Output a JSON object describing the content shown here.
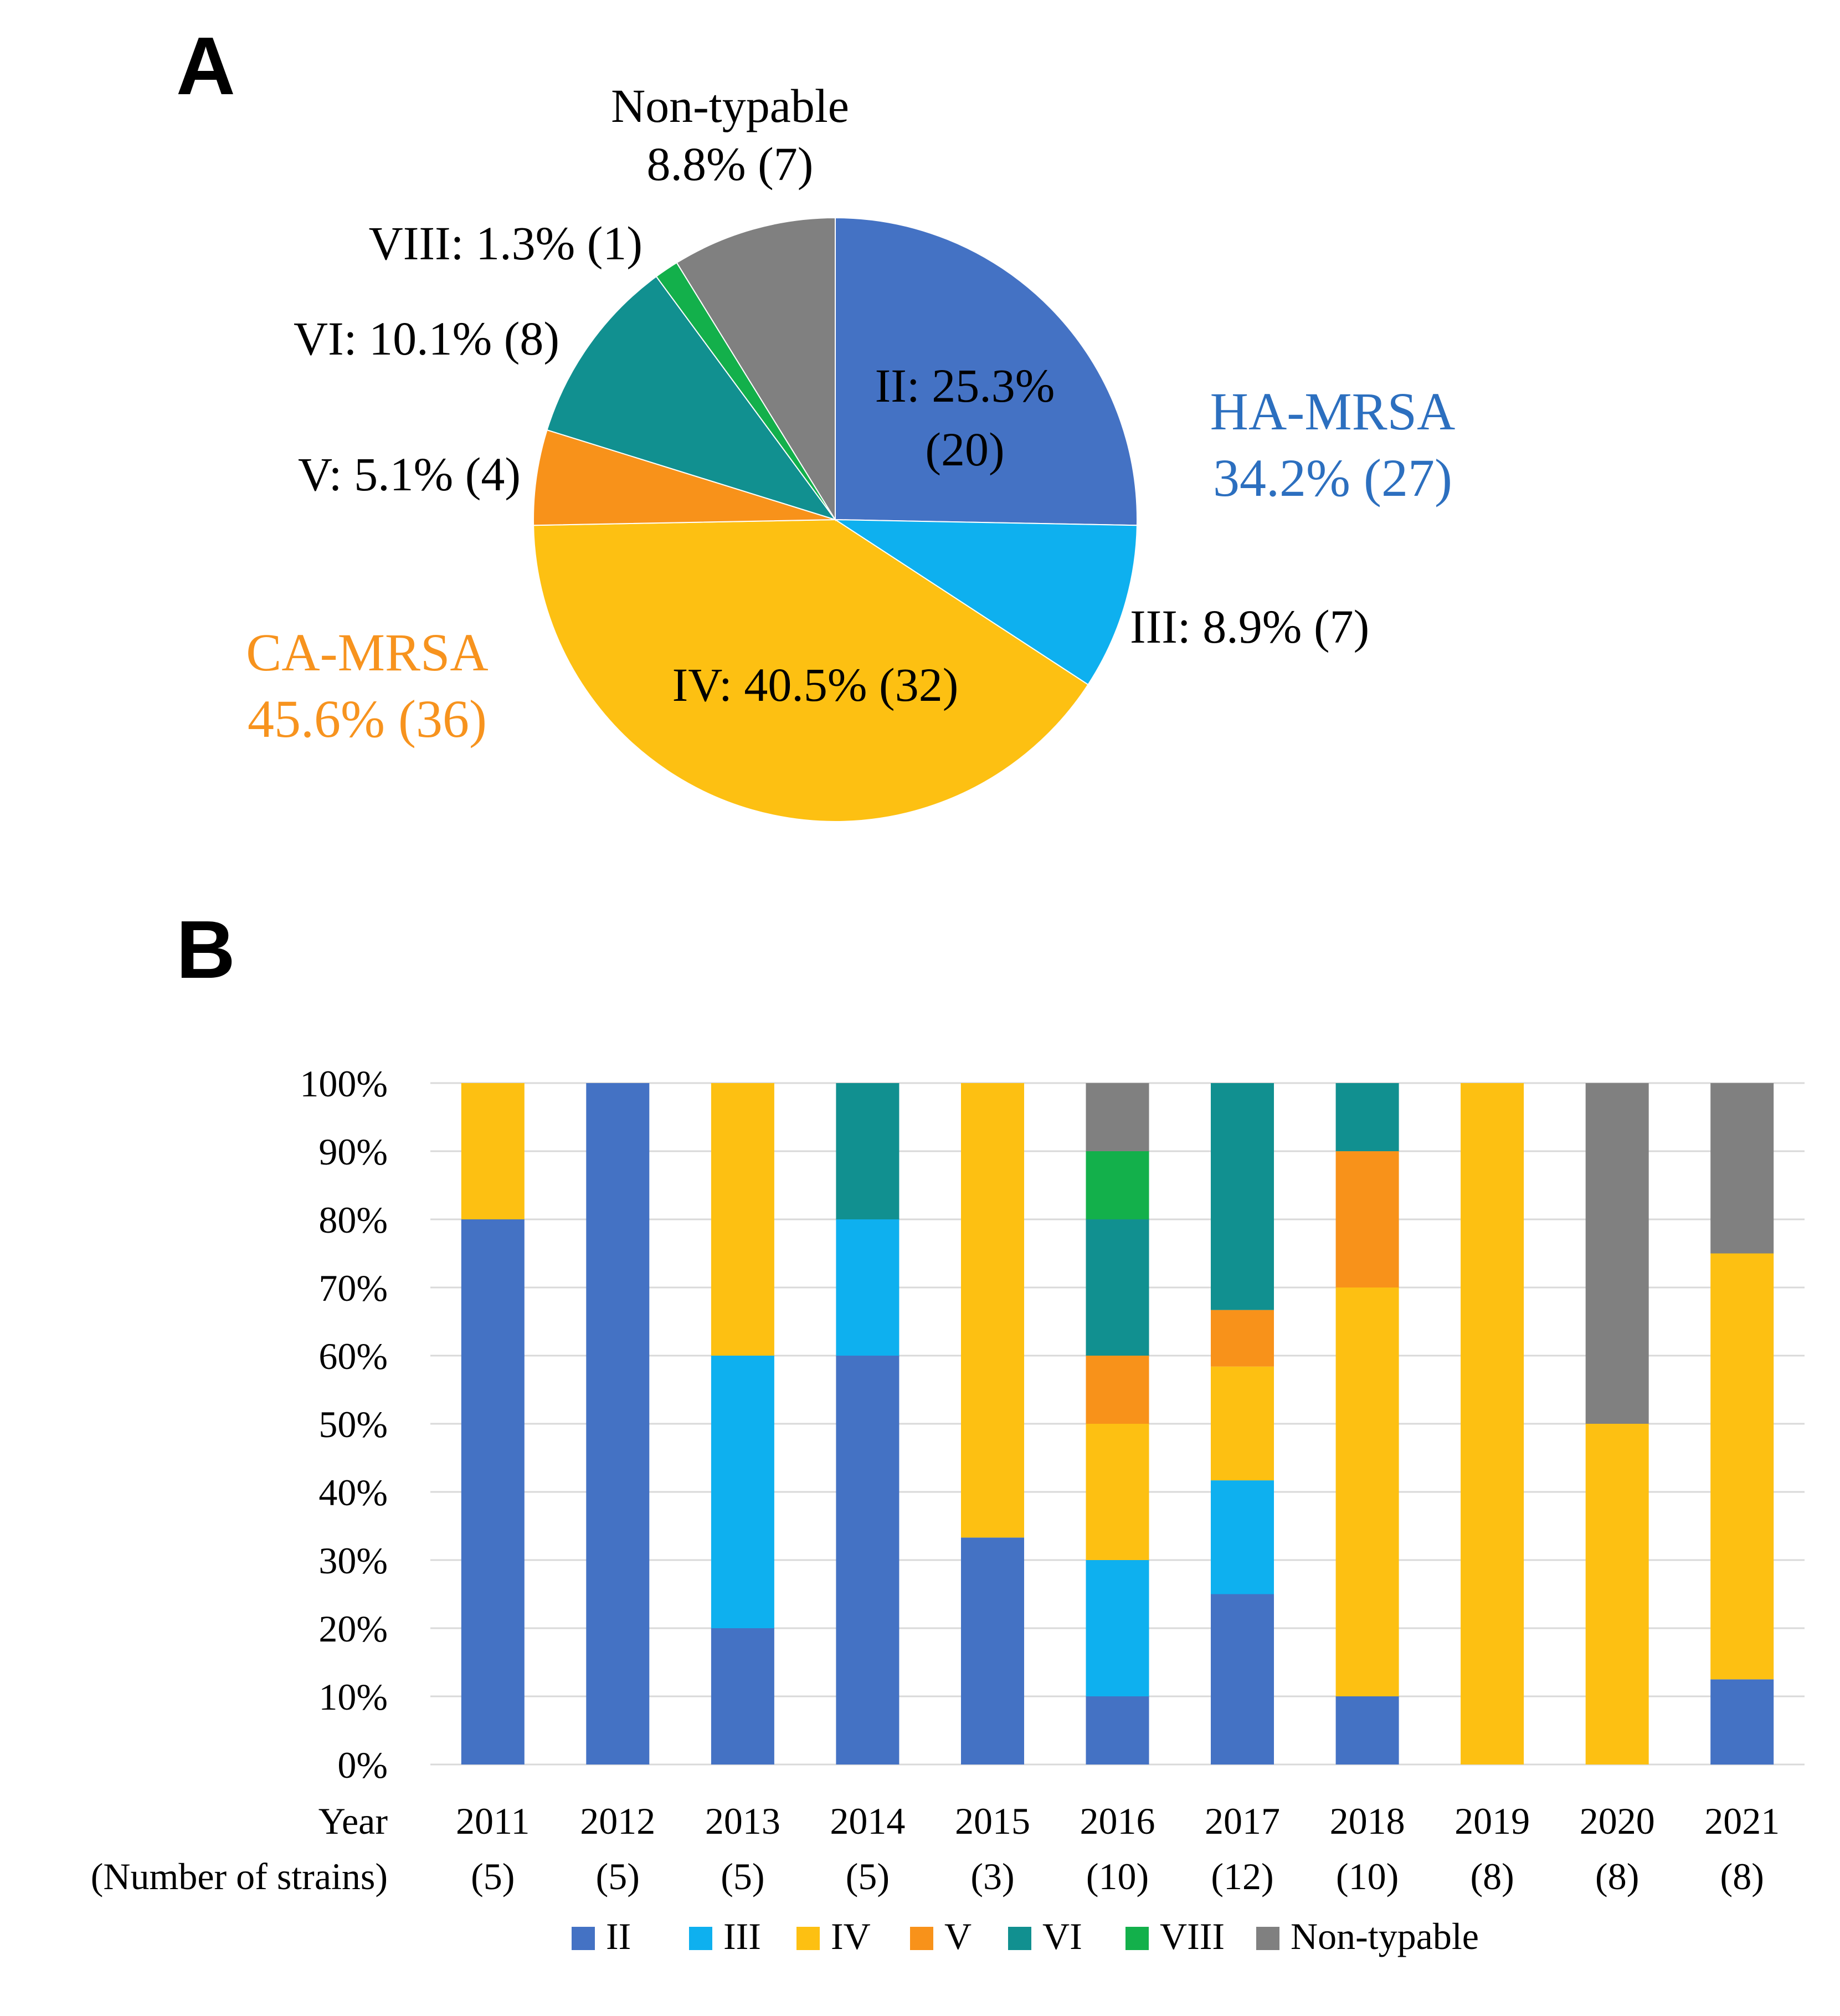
{
  "panel_a_label": "A",
  "panel_b_label": "B",
  "colors": {
    "II": "#4472C4",
    "III": "#0EB0EF",
    "IV": "#FDC012",
    "V": "#F8921A",
    "VI": "#119090",
    "VIII": "#13B04B",
    "Non-typable": "#808080",
    "ha_mrsa_text": "#2C6FBF",
    "ca_mrsa_text": "#F7931E"
  },
  "chart_data": [
    {
      "type": "pie",
      "panel": "A",
      "slices": [
        {
          "key": "II",
          "value": 25.3,
          "count": 20,
          "label_line1": "II: 25.3%",
          "label_line2": "(20)"
        },
        {
          "key": "III",
          "value": 8.9,
          "count": 7,
          "label_line1": "III: 8.9% (7)"
        },
        {
          "key": "IV",
          "value": 40.5,
          "count": 32,
          "label_line1": "IV: 40.5% (32)"
        },
        {
          "key": "V",
          "value": 5.1,
          "count": 4,
          "label_line1": "V: 5.1% (4)"
        },
        {
          "key": "VI",
          "value": 10.1,
          "count": 8,
          "label_line1": "VI: 10.1% (8)"
        },
        {
          "key": "VIII",
          "value": 1.3,
          "count": 1,
          "label_line1": "VIII: 1.3% (1)"
        },
        {
          "key": "Non-typable",
          "value": 8.8,
          "count": 7,
          "label_line1": "Non-typable",
          "label_line2": "8.8% (7)"
        }
      ],
      "group_labels": [
        {
          "key": "ha",
          "line1": "HA-MRSA",
          "line2": "34.2% (27)"
        },
        {
          "key": "ca",
          "line1": "CA-MRSA",
          "line2": "45.6% (36)"
        }
      ]
    },
    {
      "type": "bar",
      "stacked": true,
      "panel": "B",
      "categories": [
        "2011",
        "2012",
        "2013",
        "2014",
        "2015",
        "2016",
        "2017",
        "2018",
        "2019",
        "2020",
        "2021"
      ],
      "category_counts": [
        "(5)",
        "(5)",
        "(5)",
        "(5)",
        "(3)",
        "(10)",
        "(12)",
        "(10)",
        "(8)",
        "(8)",
        "(8)"
      ],
      "series": [
        {
          "name": "II",
          "values": [
            80,
            100,
            20,
            60,
            33.3,
            10,
            25,
            10,
            0,
            0,
            12.5
          ]
        },
        {
          "name": "III",
          "values": [
            0,
            0,
            40,
            20,
            0,
            20,
            16.7,
            0,
            0,
            0,
            0
          ]
        },
        {
          "name": "IV",
          "values": [
            20,
            0,
            40,
            0,
            66.7,
            20,
            16.7,
            60,
            100,
            50,
            62.5
          ]
        },
        {
          "name": "V",
          "values": [
            0,
            0,
            0,
            0,
            0,
            10,
            8.3,
            20,
            0,
            0,
            0
          ]
        },
        {
          "name": "VI",
          "values": [
            0,
            0,
            0,
            20,
            0,
            20,
            33.3,
            10,
            0,
            0,
            0
          ]
        },
        {
          "name": "VIII",
          "values": [
            0,
            0,
            0,
            0,
            0,
            10,
            0,
            0,
            0,
            0,
            0
          ]
        },
        {
          "name": "Non-typable",
          "values": [
            0,
            0,
            0,
            0,
            0,
            10,
            0,
            0,
            0,
            50,
            25
          ]
        }
      ],
      "yticks": [
        "0%",
        "10%",
        "20%",
        "30%",
        "40%",
        "50%",
        "60%",
        "70%",
        "80%",
        "90%",
        "100%"
      ],
      "ylim": [
        0,
        100
      ],
      "xlabel_line1": "Year",
      "xlabel_line2": "(Number of strains)",
      "legend": [
        "II",
        "III",
        "IV",
        "V",
        "VI",
        "VIII",
        "Non-typable"
      ],
      "legend_position": "bottom",
      "grid": true
    }
  ]
}
